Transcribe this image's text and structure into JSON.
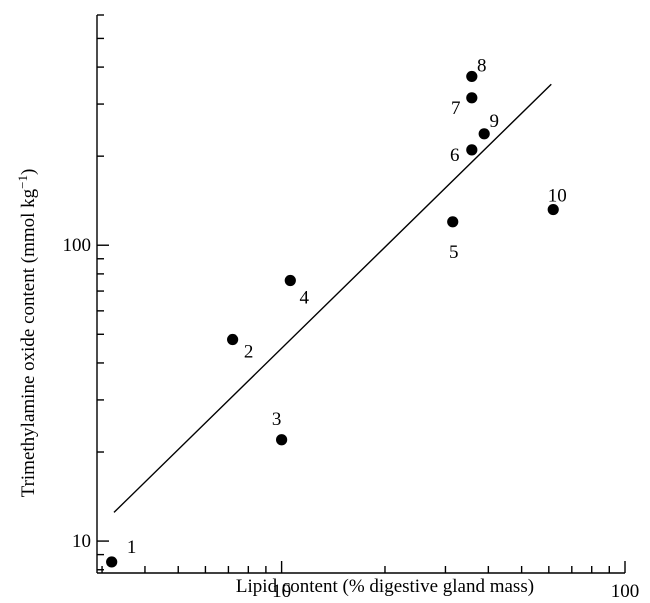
{
  "chart_data": {
    "type": "scatter",
    "xlabel": "Lipid content (% digestive gland mass)",
    "ylabel_main": "Trimethylamine oxide content (mmol kg",
    "ylabel_unit_sup": "−1",
    "ylabel_close": ")",
    "xscale": "log",
    "yscale": "log",
    "xlim": [
      2.9,
      100
    ],
    "ylim": [
      7.8,
      600
    ],
    "x_ticks": [
      {
        "value": 10,
        "label": "10"
      },
      {
        "value": 100,
        "label": "100"
      }
    ],
    "y_ticks": [
      {
        "value": 10,
        "label": "10"
      },
      {
        "value": 100,
        "label": "100"
      }
    ],
    "points": [
      {
        "label": "1",
        "x": 3.2,
        "y": 8.5
      },
      {
        "label": "2",
        "x": 7.2,
        "y": 48
      },
      {
        "label": "3",
        "x": 10.0,
        "y": 22
      },
      {
        "label": "4",
        "x": 10.6,
        "y": 76
      },
      {
        "label": "5",
        "x": 31.5,
        "y": 120
      },
      {
        "label": "6",
        "x": 35.8,
        "y": 210
      },
      {
        "label": "7",
        "x": 35.8,
        "y": 315
      },
      {
        "label": "8",
        "x": 35.8,
        "y": 372
      },
      {
        "label": "9",
        "x": 38.9,
        "y": 238
      },
      {
        "label": "10",
        "x": 61.8,
        "y": 132
      }
    ],
    "regression_line": [
      {
        "x": 3.25,
        "y": 12.5
      },
      {
        "x": 61.0,
        "y": 350
      }
    ],
    "grid": false
  }
}
